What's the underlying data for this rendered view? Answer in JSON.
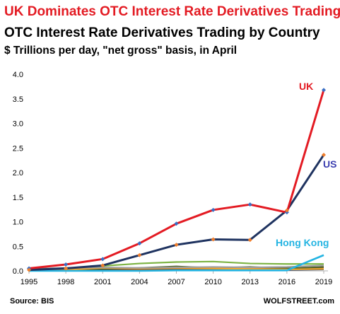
{
  "header": {
    "headline": "UK Dominates OTC Interest Rate Derivatives Trading",
    "title": "OTC Interest Rate Derivatives Trading  by Country",
    "subtitle": "$ Trillions per day, \"net gross\" basis, in April"
  },
  "footer": {
    "source": "Source: BIS",
    "brand": "WOLFSTREET.com"
  },
  "chart_data": {
    "type": "line",
    "title": "OTC Interest Rate Derivatives Trading  by Country",
    "subtitle": "$ Trillions per day, \"net gross\" basis, in April",
    "xlabel": "",
    "ylabel": "",
    "x": [
      1995,
      1998,
      2001,
      2004,
      2007,
      2010,
      2013,
      2016,
      2019
    ],
    "ylim": [
      0,
      4.0
    ],
    "yticks": [
      "0.0",
      "0.5",
      "1.0",
      "1.5",
      "2.0",
      "2.5",
      "3.0",
      "3.5",
      "4.0"
    ],
    "xticks": [
      "1995",
      "1998",
      "2001",
      "2004",
      "2007",
      "2010",
      "2013",
      "2016",
      "2019"
    ],
    "grid": false,
    "series": [
      {
        "name": "UK",
        "color": "#e31b23",
        "marker_color": "#3a6fc4",
        "label_color": "#e31b23",
        "label": "UK",
        "values": [
          0.05,
          0.13,
          0.24,
          0.56,
          0.96,
          1.24,
          1.35,
          1.19,
          3.68
        ]
      },
      {
        "name": "US",
        "color": "#1f3360",
        "marker_color": "#f07e2c",
        "label_color": "#3c3fb0",
        "label": "US",
        "values": [
          0.02,
          0.05,
          0.11,
          0.32,
          0.53,
          0.64,
          0.63,
          1.23,
          2.36
        ]
      },
      {
        "name": "Hong Kong",
        "color": "#24b4e2",
        "label_color": "#24b4e2",
        "label": "Hong Kong",
        "values": [
          0.0,
          0.0,
          0.0,
          0.0,
          0.01,
          0.01,
          0.01,
          0.01,
          0.32
        ]
      },
      {
        "name": "",
        "color": "#7cb342",
        "values": [
          0.03,
          0.05,
          0.1,
          0.15,
          0.18,
          0.19,
          0.15,
          0.14,
          0.14
        ]
      },
      {
        "name": "",
        "color": "#9e9e9e",
        "values": [
          0.04,
          0.06,
          0.07,
          0.06,
          0.07,
          0.08,
          0.07,
          0.08,
          0.11
        ]
      },
      {
        "name": "",
        "color": "#f0a830",
        "values": [
          0.01,
          0.02,
          0.06,
          0.05,
          0.06,
          0.05,
          0.04,
          0.03,
          0.04
        ]
      },
      {
        "name": "",
        "color": "#4f6228",
        "values": [
          0.0,
          0.02,
          0.04,
          0.06,
          0.09,
          0.06,
          0.08,
          0.05,
          0.08
        ]
      },
      {
        "name": "",
        "color": "#8d5a2b",
        "values": [
          0.02,
          0.03,
          0.04,
          0.03,
          0.04,
          0.04,
          0.05,
          0.04,
          0.06
        ]
      },
      {
        "name": "",
        "color": "#264478",
        "values": [
          0.01,
          0.01,
          0.02,
          0.02,
          0.03,
          0.03,
          0.03,
          0.02,
          0.03
        ]
      }
    ]
  }
}
